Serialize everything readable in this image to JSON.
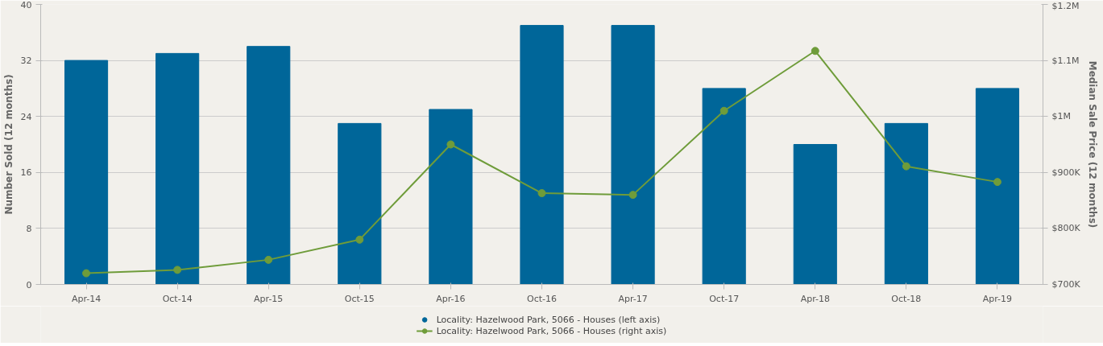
{
  "chart_data": {
    "type": "bar",
    "categories": [
      "Apr-14",
      "Oct-14",
      "Apr-15",
      "Oct-15",
      "Apr-16",
      "Oct-16",
      "Apr-17",
      "Oct-17",
      "Apr-18",
      "Oct-18",
      "Apr-19"
    ],
    "ylabel": "Number Sold (12 months)",
    "y2label": "Median Sale Price (12 months)",
    "ylim": [
      0,
      40
    ],
    "yticks": [
      0,
      8,
      16,
      24,
      32,
      40
    ],
    "y2lim": [
      700000,
      1200000
    ],
    "y2ticks": [
      {
        "value": 700000,
        "label": "$700K"
      },
      {
        "value": 800000,
        "label": "$800K"
      },
      {
        "value": 900000,
        "label": "$900K"
      },
      {
        "value": 1000000,
        "label": "$1M"
      },
      {
        "value": 1100000,
        "label": "$1.1M"
      },
      {
        "value": 1200000,
        "label": "$1.2M"
      }
    ],
    "grid": "y",
    "legend": "bottom",
    "series": [
      {
        "name": "Locality: Hazelwood Park, 5066 - Houses (left axis)",
        "color": "#006699",
        "values": [
          32,
          33,
          34,
          23,
          25,
          37,
          37,
          28,
          20,
          23,
          28
        ]
      },
      {
        "name": "Locality: Hazelwood Park, 5066 - Houses (right axis)",
        "type": "line",
        "axis": "y2",
        "color": "#6f9c3a",
        "marker": "circle",
        "line_style": "solid",
        "values": [
          720000,
          726000,
          744000,
          780000,
          950000,
          863000,
          860000,
          1010000,
          1117000,
          911000,
          883000
        ]
      }
    ]
  }
}
